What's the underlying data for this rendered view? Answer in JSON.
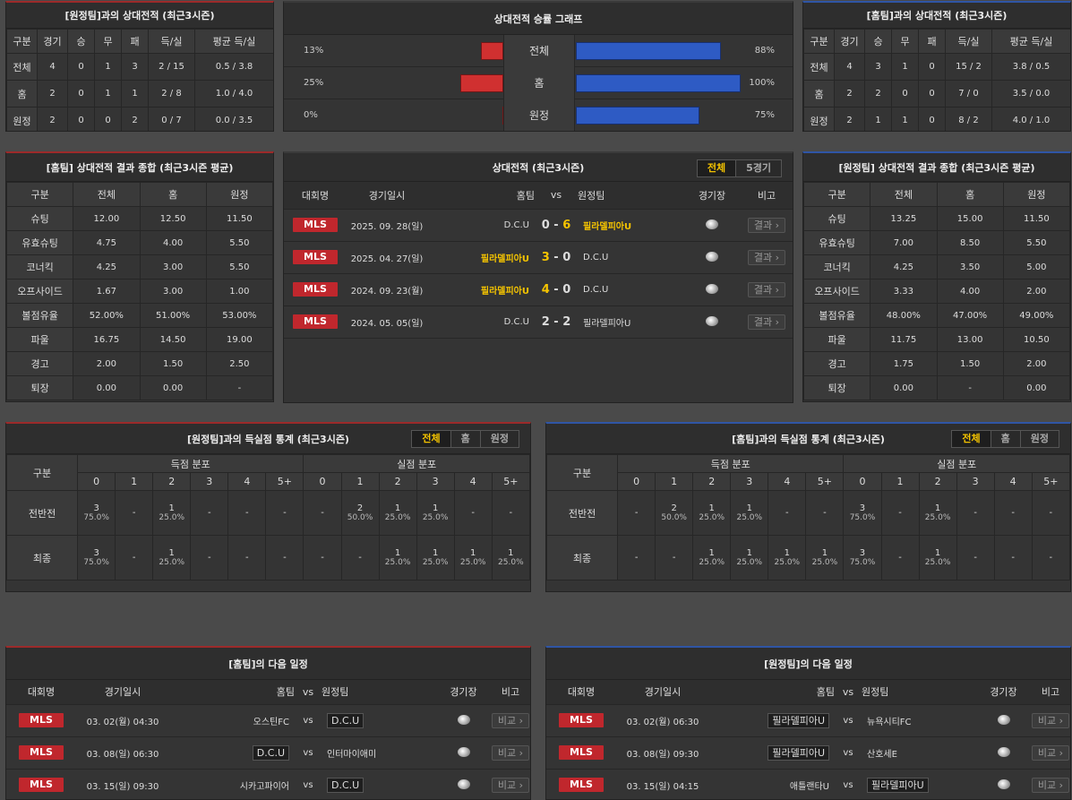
{
  "h2h_away": {
    "title": "[원정팀]과의 상대전적 (최근3시즌)",
    "headers": [
      "구분",
      "경기",
      "승",
      "무",
      "패",
      "득/실",
      "평균 득/실"
    ],
    "rows": [
      [
        "전체",
        "4",
        "0",
        "1",
        "3",
        "2 / 15",
        "0.5 / 3.8"
      ],
      [
        "홈",
        "2",
        "0",
        "1",
        "1",
        "2 / 8",
        "1.0 / 4.0"
      ],
      [
        "원정",
        "2",
        "0",
        "0",
        "2",
        "0 / 7",
        "0.0 / 3.5"
      ]
    ]
  },
  "h2h_home": {
    "title": "[홈팀]과의 상대전적 (최근3시즌)",
    "headers": [
      "구분",
      "경기",
      "승",
      "무",
      "패",
      "득/실",
      "평균 득/실"
    ],
    "rows": [
      [
        "전체",
        "4",
        "3",
        "1",
        "0",
        "15 / 2",
        "3.8 / 0.5"
      ],
      [
        "홈",
        "2",
        "2",
        "0",
        "0",
        "7 / 0",
        "3.5 / 0.0"
      ],
      [
        "원정",
        "2",
        "1",
        "1",
        "0",
        "8 / 2",
        "4.0 / 1.0"
      ]
    ]
  },
  "graph": {
    "title": "상대전적 승률 그래프",
    "rows": [
      {
        "label": "전체",
        "left_pct": "13%",
        "right_pct": "88%",
        "left": 13,
        "right": 88
      },
      {
        "label": "홈",
        "left_pct": "25%",
        "right_pct": "100%",
        "left": 25,
        "right": 100
      },
      {
        "label": "원정",
        "left_pct": "0%",
        "right_pct": "75%",
        "left": 0,
        "right": 75
      }
    ]
  },
  "summary_home": {
    "title": "[홈팀] 상대전적 결과 종합 (최근3시즌 평균)",
    "headers": [
      "구분",
      "전체",
      "홈",
      "원정"
    ],
    "rows": [
      [
        "슈팅",
        "12.00",
        "12.50",
        "11.50"
      ],
      [
        "유효슈팅",
        "4.75",
        "4.00",
        "5.50"
      ],
      [
        "코너킥",
        "4.25",
        "3.00",
        "5.50"
      ],
      [
        "오프사이드",
        "1.67",
        "3.00",
        "1.00"
      ],
      [
        "볼점유율",
        "52.00%",
        "51.00%",
        "53.00%"
      ],
      [
        "파울",
        "16.75",
        "14.50",
        "19.00"
      ],
      [
        "경고",
        "2.00",
        "1.50",
        "2.50"
      ],
      [
        "퇴장",
        "0.00",
        "0.00",
        "-"
      ]
    ]
  },
  "summary_away": {
    "title": "[원정팀] 상대전적 결과 종합 (최근3시즌 평균)",
    "headers": [
      "구분",
      "전체",
      "홈",
      "원정"
    ],
    "rows": [
      [
        "슈팅",
        "13.25",
        "15.00",
        "11.50"
      ],
      [
        "유효슈팅",
        "7.00",
        "8.50",
        "5.50"
      ],
      [
        "코너킥",
        "4.25",
        "3.50",
        "5.00"
      ],
      [
        "오프사이드",
        "3.33",
        "4.00",
        "2.00"
      ],
      [
        "볼점유율",
        "48.00%",
        "47.00%",
        "49.00%"
      ],
      [
        "파울",
        "11.75",
        "13.00",
        "10.50"
      ],
      [
        "경고",
        "1.75",
        "1.50",
        "2.00"
      ],
      [
        "퇴장",
        "0.00",
        "-",
        "0.00"
      ]
    ]
  },
  "matches": {
    "title": "상대전적 (최근3시즌)",
    "tabs": [
      "전체",
      "5경기"
    ],
    "headers": {
      "league": "대회명",
      "date": "경기일시",
      "home": "홈팀",
      "vs": "vs",
      "away": "원정팀",
      "venue": "경기장",
      "note": "비고"
    },
    "rows": [
      {
        "league": "MLS",
        "date": "2025. 09. 28(일)",
        "home": "D.C.U",
        "hs": "0",
        "as": "6",
        "away": "필라델피아U",
        "win": "away",
        "btn": "결과"
      },
      {
        "league": "MLS",
        "date": "2025. 04. 27(일)",
        "home": "필라델피아U",
        "hs": "3",
        "as": "0",
        "away": "D.C.U",
        "win": "home",
        "btn": "결과"
      },
      {
        "league": "MLS",
        "date": "2024. 09. 23(월)",
        "home": "필라델피아U",
        "hs": "4",
        "as": "0",
        "away": "D.C.U",
        "win": "home",
        "btn": "결과"
      },
      {
        "league": "MLS",
        "date": "2024. 05. 05(일)",
        "home": "D.C.U",
        "hs": "2",
        "as": "2",
        "away": "필라델피아U",
        "win": "none",
        "btn": "결과"
      }
    ]
  },
  "dash": "-",
  "goals_away": {
    "title": "[원정팀]과의 득실점 통계 (최근3시즌)",
    "tabs": [
      "전체",
      "홈",
      "원정"
    ],
    "gubun": "구분",
    "scored": "득점 분포",
    "conceded": "실점 분포",
    "cols": [
      "0",
      "1",
      "2",
      "3",
      "4",
      "5+"
    ],
    "rows": [
      {
        "label": "전반전",
        "s": [
          [
            "3",
            "75.0%"
          ],
          null,
          [
            "1",
            "25.0%"
          ],
          null,
          null,
          null
        ],
        "c": [
          null,
          [
            "2",
            "50.0%"
          ],
          [
            "1",
            "25.0%"
          ],
          [
            "1",
            "25.0%"
          ],
          null,
          null
        ]
      },
      {
        "label": "최종",
        "s": [
          [
            "3",
            "75.0%"
          ],
          null,
          [
            "1",
            "25.0%"
          ],
          null,
          null,
          null
        ],
        "c": [
          null,
          null,
          [
            "1",
            "25.0%"
          ],
          [
            "1",
            "25.0%"
          ],
          [
            "1",
            "25.0%"
          ],
          [
            "1",
            "25.0%"
          ]
        ]
      }
    ]
  },
  "goals_home": {
    "title": "[홈팀]과의 득실점 통계 (최근3시즌)",
    "tabs": [
      "전체",
      "홈",
      "원정"
    ],
    "gubun": "구분",
    "scored": "득점 분포",
    "conceded": "실점 분포",
    "cols": [
      "0",
      "1",
      "2",
      "3",
      "4",
      "5+"
    ],
    "rows": [
      {
        "label": "전반전",
        "s": [
          null,
          [
            "2",
            "50.0%"
          ],
          [
            "1",
            "25.0%"
          ],
          [
            "1",
            "25.0%"
          ],
          null,
          null
        ],
        "c": [
          [
            "3",
            "75.0%"
          ],
          null,
          [
            "1",
            "25.0%"
          ],
          null,
          null,
          null
        ]
      },
      {
        "label": "최종",
        "s": [
          null,
          null,
          [
            "1",
            "25.0%"
          ],
          [
            "1",
            "25.0%"
          ],
          [
            "1",
            "25.0%"
          ],
          [
            "1",
            "25.0%"
          ]
        ],
        "c": [
          [
            "3",
            "75.0%"
          ],
          null,
          [
            "1",
            "25.0%"
          ],
          null,
          null,
          null
        ]
      }
    ]
  },
  "sched_home": {
    "title": "[홈팀]의 다음 일정",
    "headers": {
      "league": "대회명",
      "date": "경기일시",
      "home": "홈팀",
      "vs": "vs",
      "away": "원정팀",
      "venue": "경기장",
      "note": "비고"
    },
    "rows": [
      {
        "league": "MLS",
        "date": "03. 02(월) 04:30",
        "home": "오스틴FC",
        "away": "D.C.U",
        "boxed": "away",
        "btn": "비교"
      },
      {
        "league": "MLS",
        "date": "03. 08(일) 06:30",
        "home": "D.C.U",
        "away": "인터마이애미",
        "boxed": "home",
        "btn": "비교"
      },
      {
        "league": "MLS",
        "date": "03. 15(일) 09:30",
        "home": "시카고파이어",
        "away": "D.C.U",
        "boxed": "away",
        "btn": "비교"
      }
    ]
  },
  "sched_away": {
    "title": "[원정팀]의 다음 일정",
    "headers": {
      "league": "대회명",
      "date": "경기일시",
      "home": "홈팀",
      "vs": "vs",
      "away": "원정팀",
      "venue": "경기장",
      "note": "비고"
    },
    "rows": [
      {
        "league": "MLS",
        "date": "03. 02(월) 06:30",
        "home": "필라델피아U",
        "away": "뉴욕시티FC",
        "boxed": "home",
        "btn": "비교"
      },
      {
        "league": "MLS",
        "date": "03. 08(일) 09:30",
        "home": "필라델피아U",
        "away": "산호세E",
        "boxed": "home",
        "btn": "비교"
      },
      {
        "league": "MLS",
        "date": "03. 15(일) 04:15",
        "home": "애틀랜타U",
        "away": "필라델피아U",
        "boxed": "away",
        "btn": "비교"
      }
    ]
  },
  "colors": {
    "red": "#c0272d",
    "blue": "#2e5bc4",
    "gold": "#f5c400"
  }
}
